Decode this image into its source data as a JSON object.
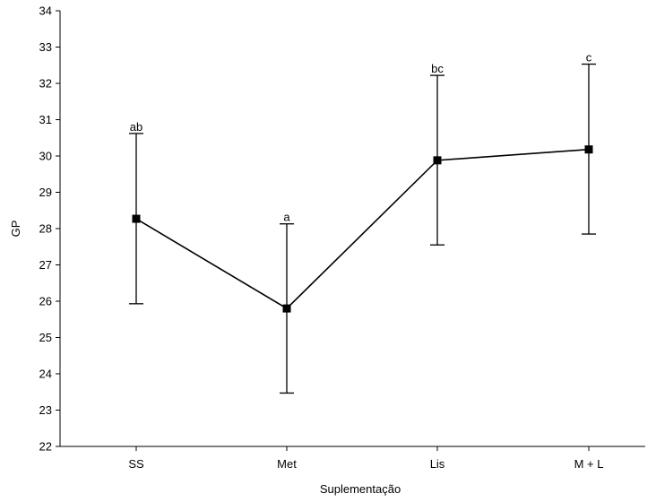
{
  "chart_data": {
    "type": "line",
    "xlabel": "Suplementação",
    "ylabel": "GP",
    "ylim": [
      22,
      34
    ],
    "yticks": [
      22,
      23,
      24,
      25,
      26,
      27,
      28,
      29,
      30,
      31,
      32,
      33,
      34
    ],
    "categories": [
      "SS",
      "Met",
      "Lis",
      "M + L"
    ],
    "series": [
      {
        "values": [
          28.27,
          25.8,
          29.88,
          30.18
        ],
        "lower": [
          25.93,
          23.47,
          27.55,
          27.85
        ],
        "upper": [
          30.62,
          28.13,
          32.22,
          32.53
        ],
        "labels": [
          "ab",
          "a",
          "bc",
          "c"
        ]
      }
    ],
    "grid": false,
    "colors": {
      "line": "#000000",
      "marker": "#000000"
    }
  }
}
